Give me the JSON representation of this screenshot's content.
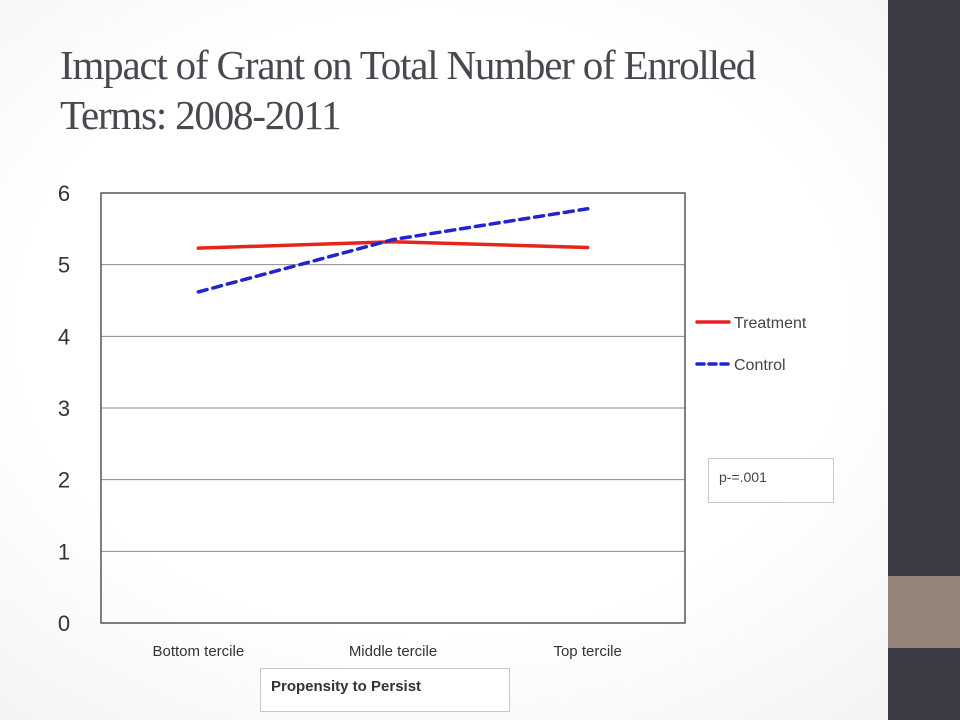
{
  "title": "Impact of Grant on Total Number of Enrolled Terms: 2008-2011",
  "chart_data": {
    "type": "line",
    "title": "",
    "xlabel": "Propensity to Persist",
    "ylabel": "",
    "ylim": [
      0,
      6
    ],
    "yticks": [
      "0",
      "1",
      "2",
      "3",
      "4",
      "5",
      "6"
    ],
    "categories": [
      "Bottom tercile",
      "Middle tercile",
      "Top tercile"
    ],
    "grid": true,
    "legend_position": "right",
    "series": [
      {
        "name": "Treatment",
        "values": [
          5.23,
          5.32,
          5.24
        ],
        "color": "#e8231a",
        "style": "solid"
      },
      {
        "name": "Control",
        "values": [
          4.62,
          5.35,
          5.78
        ],
        "color": "#1f26cc",
        "style": "dashed"
      }
    ],
    "annotation": "p-=.001"
  },
  "colors": {
    "sidebar": "#3d3a45",
    "sidebar_accent": "#938379",
    "title_text": "#4a4750"
  }
}
